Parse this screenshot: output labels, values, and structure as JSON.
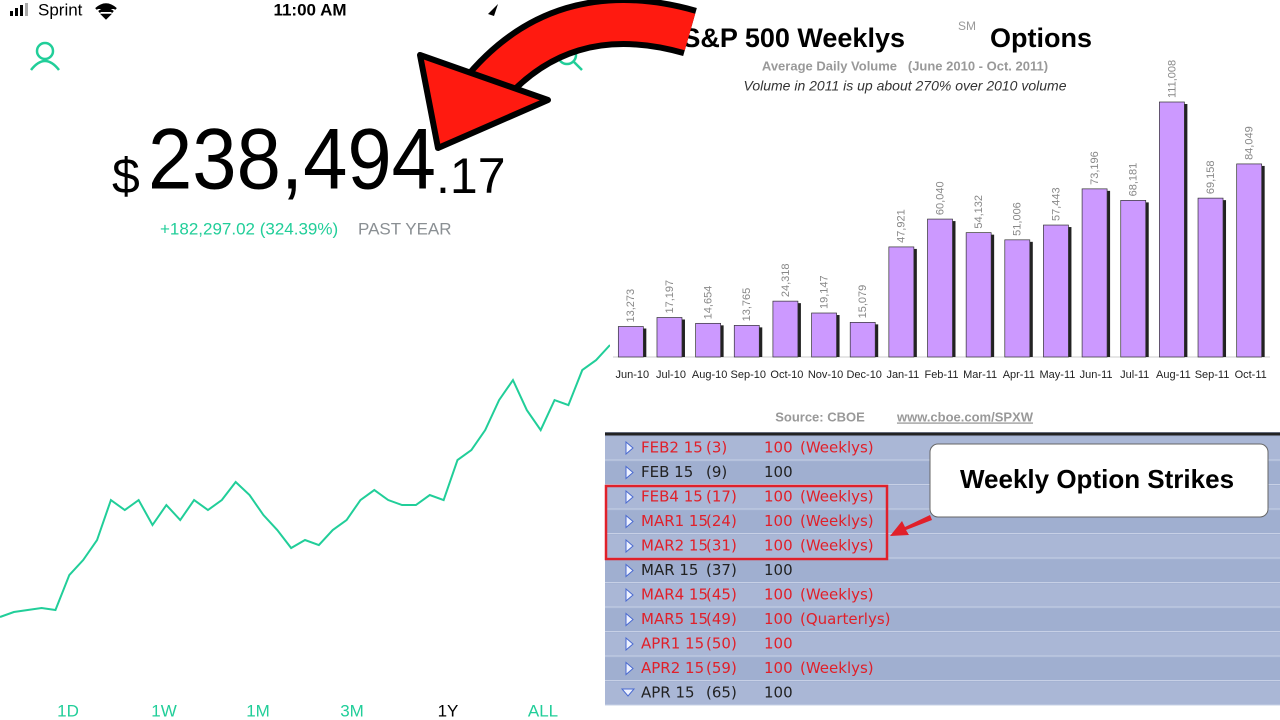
{
  "status": {
    "carrier": "Sprint",
    "time": "11:00 AM"
  },
  "portfolio": {
    "currency": "$",
    "whole": "238,494",
    "cents": ".17",
    "change": "+182,297.02 (324.39%)",
    "period": "PAST YEAR"
  },
  "ranges": {
    "tabs": [
      "1D",
      "1W",
      "1M",
      "3M",
      "1Y",
      "ALL"
    ],
    "selected": 4
  },
  "chart_data": [
    {
      "type": "line",
      "color": "#21ce99",
      "values": [
        56197,
        59547,
        60887,
        62227,
        60887,
        84337,
        94387,
        107787,
        134587,
        127887,
        134587,
        117837,
        131237,
        121187,
        134587,
        127887,
        134587,
        146647,
        137937,
        124537,
        114487,
        102427,
        107787,
        104437,
        114487,
        121187,
        134587,
        141287,
        134587,
        131237,
        131237,
        137937,
        134587,
        161387,
        168087,
        181487,
        201587,
        214987,
        194887,
        181487,
        201587,
        198237,
        221687,
        228387,
        238494
      ]
    },
    {
      "type": "bar",
      "title": "S&P 500 Weeklys",
      "title_mark": "SM",
      "title_end": "Options",
      "subtitle": "Average Daily Volume   (June 2010 - Oct. 2011)",
      "annotation": "Volume in 2011 is up about 270% over 2010 volume",
      "source": "Source: CBOE",
      "source_url": "www.cboe.com/SPXW",
      "color": "#cc99ff",
      "categories": [
        "Jun-10",
        "Jul-10",
        "Aug-10",
        "Sep-10",
        "Oct-10",
        "Nov-10",
        "Dec-10",
        "Jan-11",
        "Feb-11",
        "Mar-11",
        "Apr-11",
        "May-11",
        "Jun-11",
        "Jul-11",
        "Aug-11",
        "Sep-11",
        "Oct-11"
      ],
      "values": [
        13273,
        17197,
        14654,
        13765,
        24318,
        19147,
        15079,
        47921,
        60040,
        54132,
        51006,
        57443,
        73196,
        68181,
        111008,
        69158,
        84049
      ],
      "value_labels": [
        "13,273",
        "17,197",
        "14,654",
        "13,765",
        "24,318",
        "19,147",
        "15,079",
        "47,921",
        "60,040",
        "54,132",
        "51,006",
        "57,443",
        "73,196",
        "68,181",
        "111,008",
        "69,158",
        "84,049"
      ]
    }
  ],
  "options": {
    "callout": "Weekly Option Strikes",
    "rows": [
      {
        "name": "FEB2 15",
        "days": "(3)",
        "strike": "100",
        "tag": "(Weeklys)",
        "color": "#e0202a"
      },
      {
        "name": "FEB 15",
        "days": "(9)",
        "strike": "100",
        "color": "#222222"
      },
      {
        "name": "FEB4 15",
        "days": "(17)",
        "strike": "100",
        "tag": "(Weeklys)",
        "color": "#e0202a"
      },
      {
        "name": "MAR1 15",
        "days": "(24)",
        "strike": "100",
        "tag": "(Weeklys)",
        "color": "#e0202a"
      },
      {
        "name": "MAR2 15",
        "days": "(31)",
        "strike": "100",
        "tag": "(Weeklys)",
        "color": "#e0202a"
      },
      {
        "name": "MAR 15",
        "days": "(37)",
        "strike": "100",
        "color": "#222222"
      },
      {
        "name": "MAR4 15",
        "days": "(45)",
        "strike": "100",
        "tag": "(Weeklys)",
        "color": "#e0202a"
      },
      {
        "name": "MAR5 15",
        "days": "(49)",
        "strike": "100",
        "tag": "(Quarterlys)",
        "color": "#e0202a"
      },
      {
        "name": "APR1 15",
        "days": "(50)",
        "strike": "100",
        "color": "#e0202a"
      },
      {
        "name": "APR2 15",
        "days": "(59)",
        "strike": "100",
        "tag": "(Weeklys)",
        "color": "#e0202a"
      },
      {
        "name": "APR 15",
        "days": "(65)",
        "strike": "100",
        "color": "#222222",
        "expanded": true
      }
    ]
  }
}
